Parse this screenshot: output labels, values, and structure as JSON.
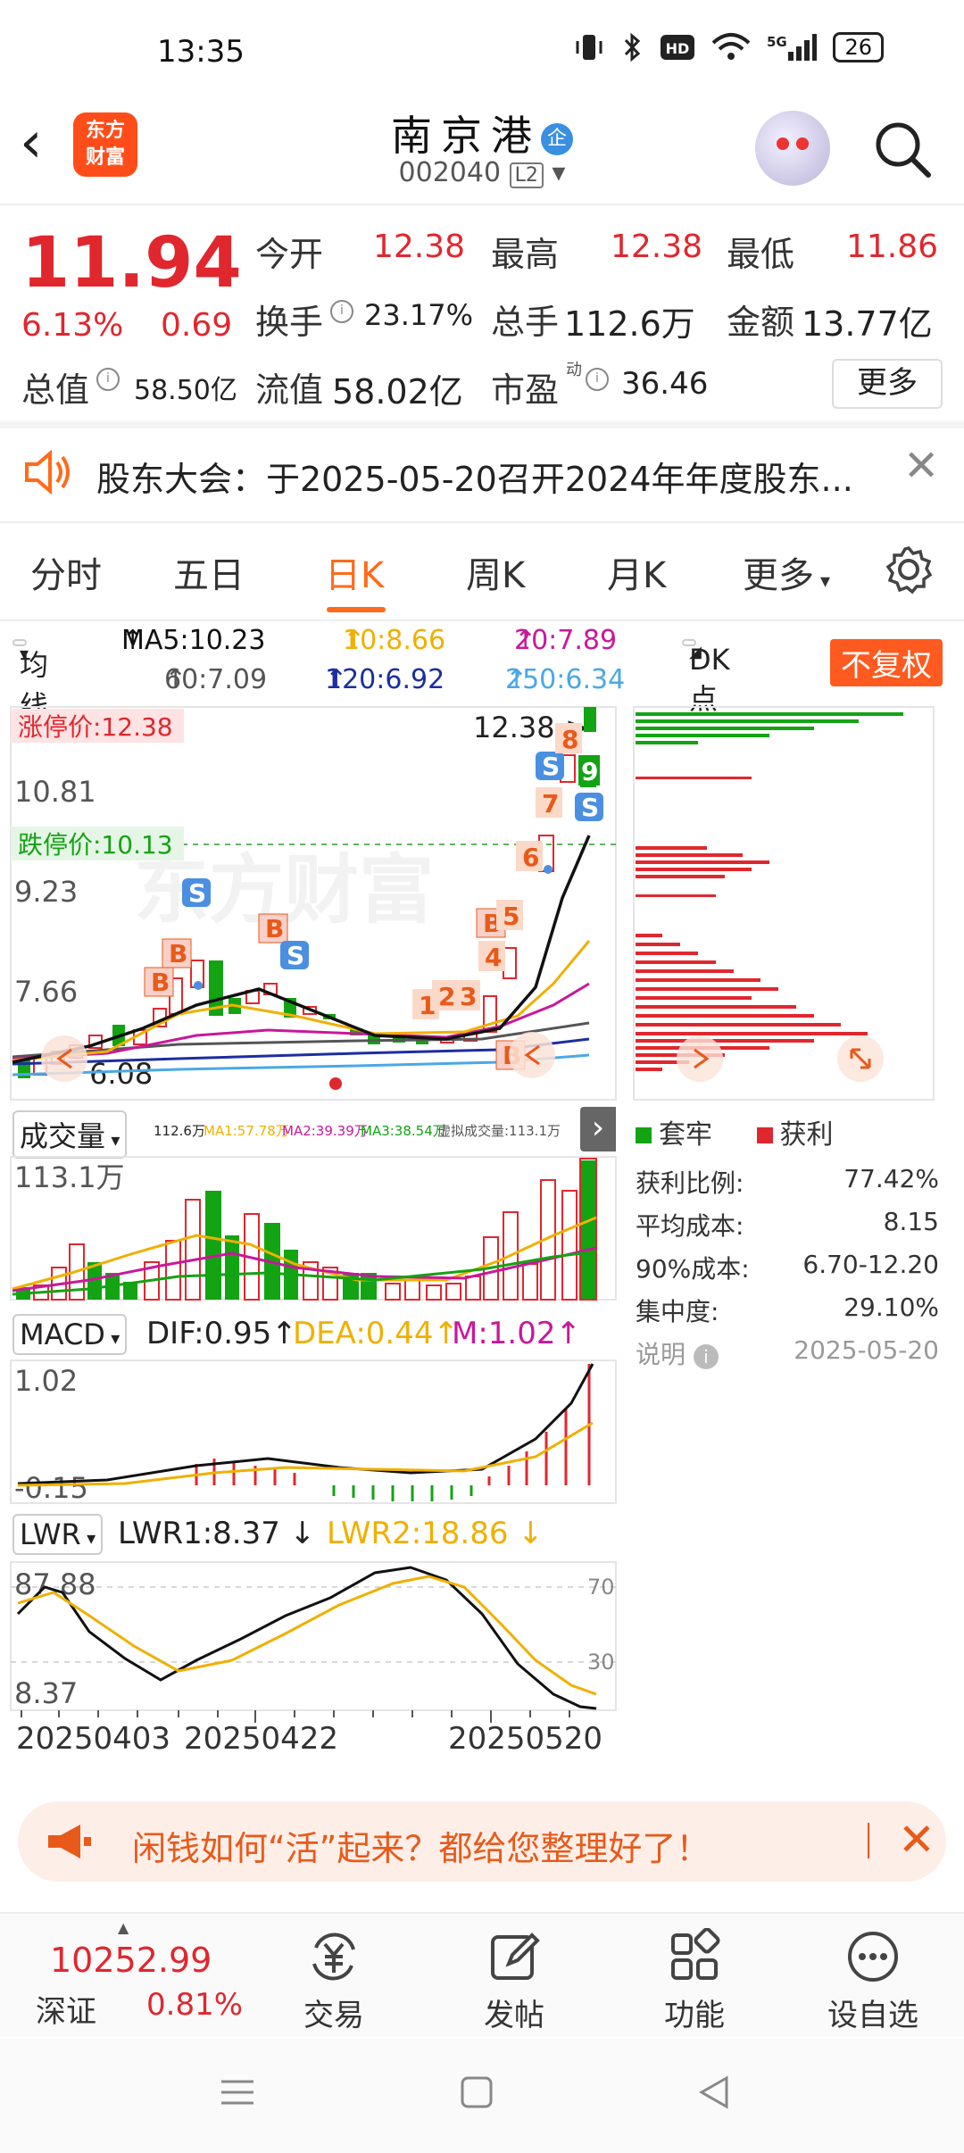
{
  "status_bar": {
    "time": "13:35",
    "network": "5G",
    "wifi": "wifi",
    "bluetooth": "bluetooth",
    "hd": "HD",
    "battery": "26"
  },
  "header": {
    "brand": "东方财富",
    "stock_name": "南京港",
    "stock_badge": "企",
    "code": "002040",
    "level": "L2"
  },
  "quote": {
    "price": "11.94",
    "pct": "6.13%",
    "change": "0.69",
    "open_label": "今开",
    "open": "12.38",
    "high_label": "最高",
    "high": "12.38",
    "low_label": "最低",
    "low": "11.86",
    "turnover_label": "换手",
    "turnover": "23.17%",
    "volume_label": "总手",
    "volume": "112.6万",
    "amount_label": "金额",
    "amount": "13.77亿",
    "mktcap_label": "总值",
    "mktcap": "58.50亿",
    "float_label": "流值",
    "float": "58.02亿",
    "pe_label": "市盈",
    "pe_sup": "动",
    "pe": "36.46",
    "more": "更多"
  },
  "notice": {
    "text": "股东大会：于2025-05-20召开2024年年度股东..."
  },
  "tabs": {
    "items": [
      "分时",
      "五日",
      "日K",
      "周K",
      "月K",
      "更多"
    ],
    "active": "日K"
  },
  "ma_row": {
    "selector": "均线",
    "ma5": "MA5:10.23",
    "ma10": "10:8.66",
    "ma20": "20:7.89",
    "ma60": "60:7.09",
    "ma120": "120:6.92",
    "ma250": "250:6.34",
    "dk": "DK点",
    "adjust": "不复权"
  },
  "kline": {
    "limit_up": "涨停价:12.38",
    "limit_down": "跌停价:10.13",
    "y_labels": [
      "10.81",
      "9.23",
      "7.66",
      "6.08"
    ],
    "latest_high": "12.38",
    "watermark": "东方财富",
    "markers": [
      "B",
      "B",
      "S",
      "B",
      "S",
      "B",
      "5",
      "4",
      "3",
      "2",
      "1",
      "B",
      "6",
      "7",
      "S",
      "8",
      "9",
      "S"
    ]
  },
  "volume": {
    "selector": "成交量",
    "summary": [
      "112.6万",
      "MA1:57.78万",
      "MA2:39.39万",
      "MA3:38.54万",
      "虚拟成交量:113.1万"
    ],
    "max_label": "113.1万"
  },
  "macd": {
    "selector": "MACD",
    "dif": "DIF:0.95",
    "dea": "DEA:0.44",
    "m": "M:1.02",
    "top": "1.02",
    "bottom": "-0.15"
  },
  "lwr": {
    "selector": "LWR",
    "lwr1": "LWR1:8.37",
    "lwr2": "LWR2:18.86",
    "top": "87.88",
    "bottom": "8.37",
    "ref_high": "70",
    "ref_low": "30"
  },
  "dates": [
    "20250403",
    "20250422",
    "20250520"
  ],
  "chip": {
    "legend_trapped": "套牢",
    "legend_profit": "获利",
    "stats": [
      {
        "label": "获利比例:",
        "value": "77.42%"
      },
      {
        "label": "平均成本:",
        "value": "8.15"
      },
      {
        "label": "90%成本:",
        "value": "6.70-12.20"
      },
      {
        "label": "集中度:",
        "value": "29.10%"
      }
    ],
    "note_label": "说明",
    "note_date": "2025-05-20"
  },
  "promo": {
    "text": "闲钱如何“活”起来？都给您整理好了！"
  },
  "bottom_nav": {
    "index_value": "10252.99",
    "index_name": "深证",
    "index_pct": "0.81%",
    "items": [
      "交易",
      "发帖",
      "功能",
      "设自选"
    ]
  },
  "colors": {
    "up": "#e0272e",
    "down": "#13a313",
    "accent": "#ff6b1a",
    "ma5": "#111111",
    "ma10": "#f0b000",
    "ma20": "#c8189a",
    "ma60": "#555555",
    "ma120": "#1c2ea0",
    "ma250": "#4aa8e6"
  }
}
